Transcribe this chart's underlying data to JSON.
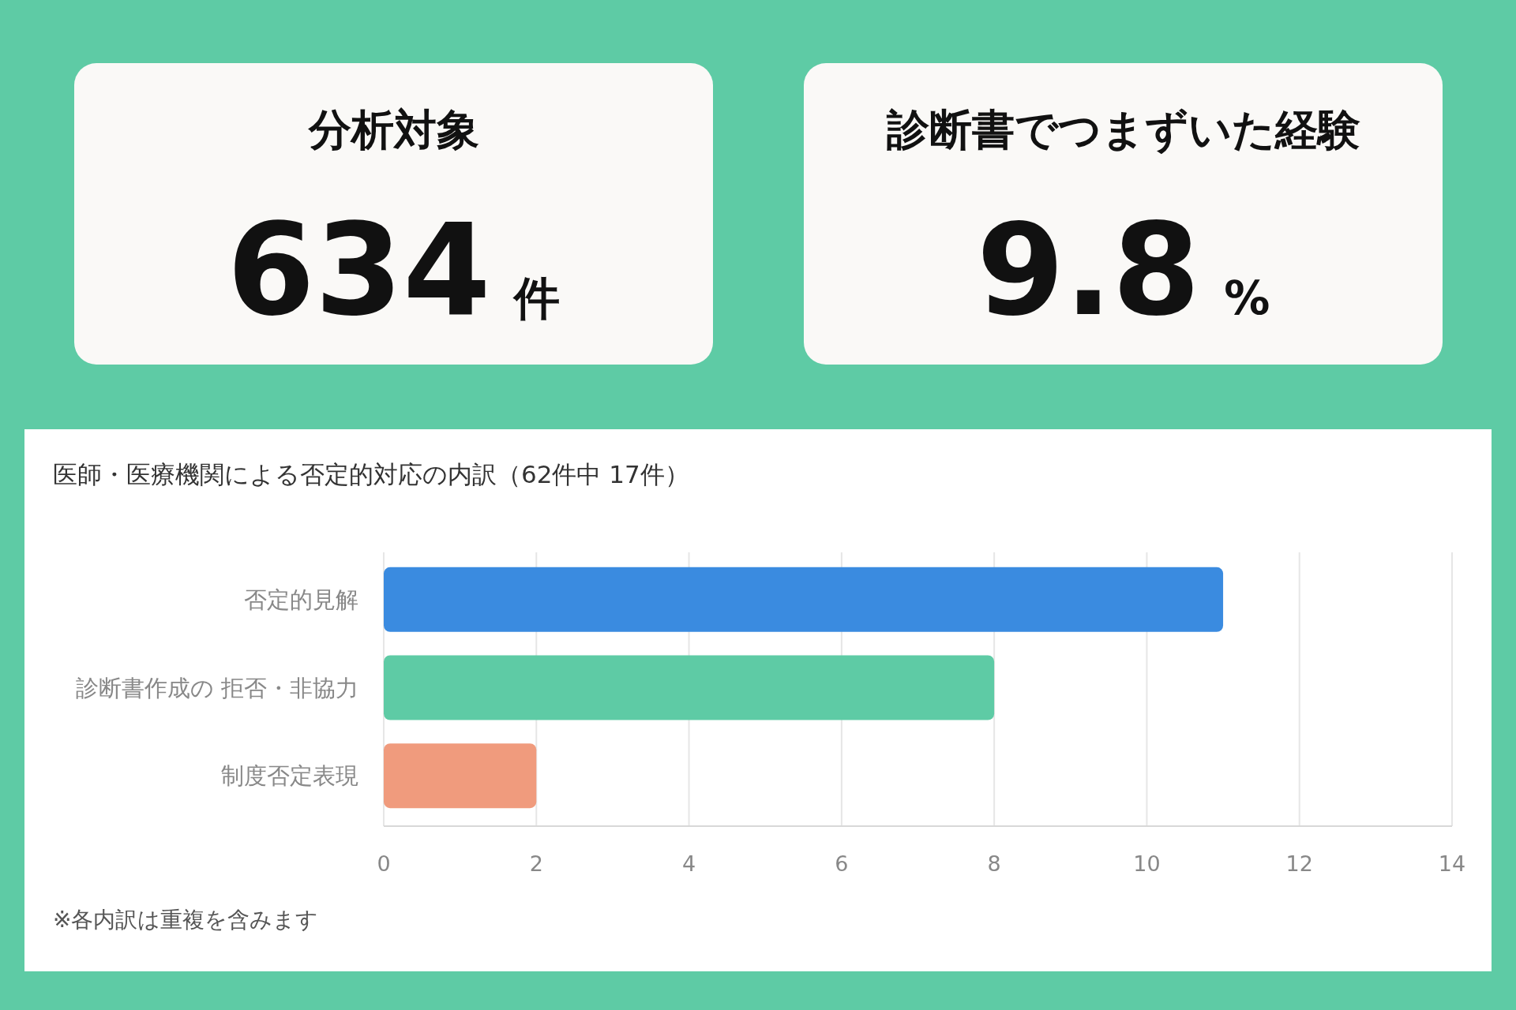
{
  "chart_data": [
    {
      "type": "other",
      "title": "分析対象",
      "annotations": [
        "634",
        "件"
      ]
    },
    {
      "type": "other",
      "title": "診断書でつまずいた経験",
      "annotations": [
        "9.8",
        "%"
      ]
    },
    {
      "type": "bar",
      "orientation": "horizontal",
      "title": "医師・医療機関による否定的対応の内訳（62件中 17件）",
      "categories": [
        "否定的見解",
        "診断書作成の 拒否・非協力",
        "制度否定表現"
      ],
      "values": [
        11,
        8,
        2
      ],
      "colors": [
        "#3a8be0",
        "#5ecba5",
        "#f09b7d"
      ],
      "xlim": [
        0,
        14
      ],
      "xticks": [
        0,
        2,
        4,
        6,
        8,
        10,
        12,
        14
      ],
      "grid": "x",
      "annotations": [
        "※各内訳は重複を含みます"
      ]
    }
  ]
}
